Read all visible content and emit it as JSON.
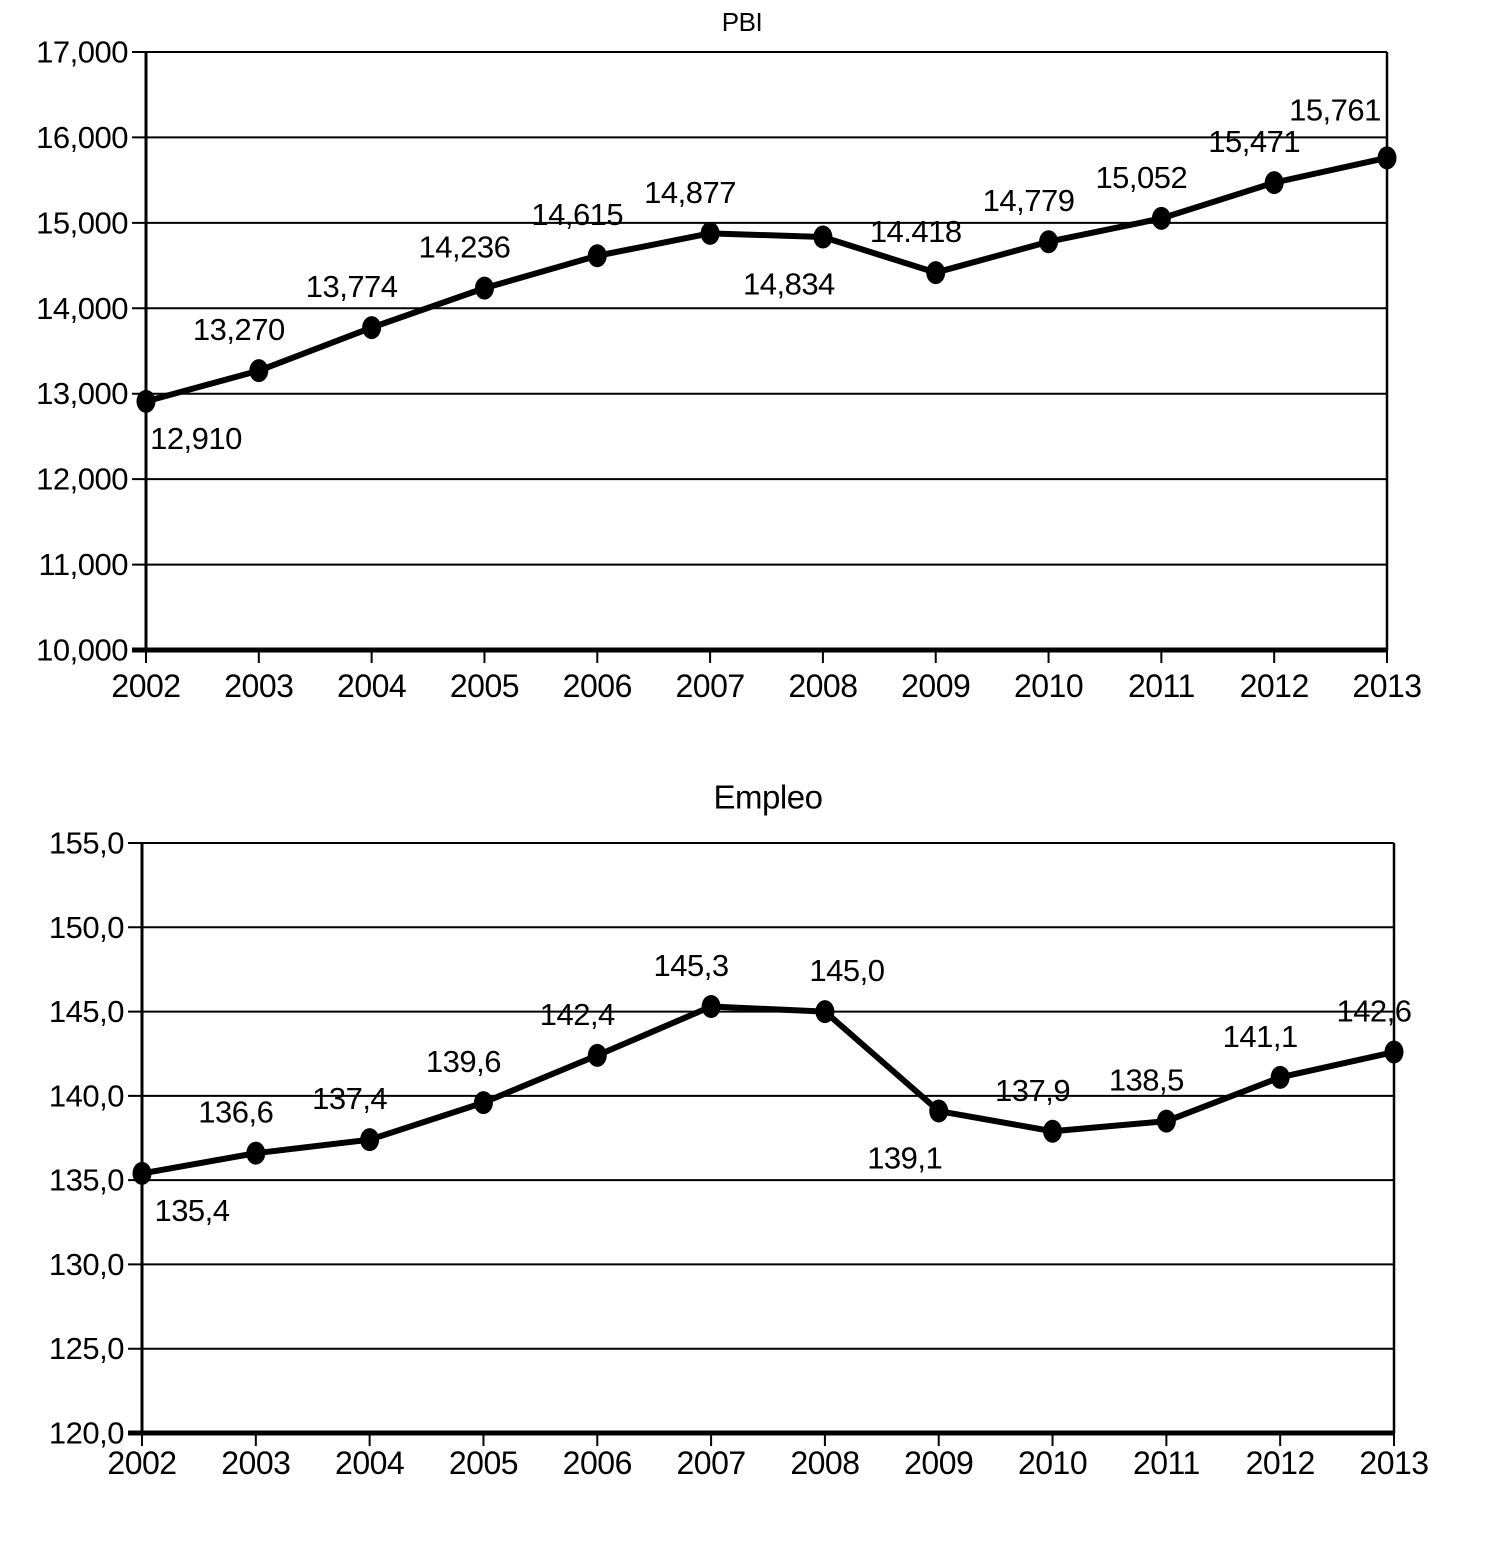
{
  "page": {
    "background": "#ffffff",
    "text_color": "#000000",
    "series_color": "#000000"
  },
  "chart_data": [
    {
      "type": "line",
      "title": "PBI",
      "categories": [
        "2002",
        "2003",
        "2004",
        "2005",
        "2006",
        "2007",
        "2008",
        "2009",
        "2010",
        "2011",
        "2012",
        "2013"
      ],
      "values": [
        12910,
        13270,
        13774,
        14236,
        14615,
        14877,
        14834,
        14418,
        14779,
        15052,
        15471,
        15761
      ],
      "point_labels": [
        "12,910",
        "13,270",
        "13,774",
        "14,236",
        "14,615",
        "14,877",
        "14,834",
        "14.418",
        "14,779",
        "15,052",
        "15,471",
        "15,761"
      ],
      "label_placement": [
        "below-right",
        "above",
        "above",
        "above",
        "above",
        "above",
        "below",
        "above",
        "above",
        "above",
        "above",
        "above-left"
      ],
      "xlabel": "",
      "ylabel": "",
      "ylim": [
        10000,
        17000
      ],
      "ytick_step": 1000,
      "ytick_labels": [
        "17,000",
        "16,000",
        "15,000",
        "14,000",
        "13,000",
        "12,000",
        "11,000",
        "10,000"
      ],
      "grid": true,
      "legend": "none",
      "marker": "filled-ellipse"
    },
    {
      "type": "line",
      "title": "Empleo",
      "categories": [
        "2002",
        "2003",
        "2004",
        "2005",
        "2006",
        "2007",
        "2008",
        "2009",
        "2010",
        "2011",
        "2012",
        "2013"
      ],
      "values": [
        135.4,
        136.6,
        137.4,
        139.6,
        142.4,
        145.3,
        145.0,
        139.1,
        137.9,
        138.5,
        141.1,
        142.6
      ],
      "point_labels": [
        "135,4",
        "136,6",
        "137,4",
        "139,6",
        "142,4",
        "145,3",
        "145,0",
        "139,1",
        "137,9",
        "138,5",
        "141,1",
        "142,6"
      ],
      "label_placement": [
        "below-right",
        "above",
        "above",
        "above",
        "above",
        "above",
        "above-right",
        "below",
        "above",
        "above",
        "above",
        "above"
      ],
      "xlabel": "",
      "ylabel": "",
      "ylim": [
        120,
        155
      ],
      "ytick_step": 5,
      "ytick_labels": [
        "155,0",
        "150,0",
        "145,0",
        "140,0",
        "135,0",
        "130,0",
        "125,0",
        "120,0"
      ],
      "grid": true,
      "legend": "none",
      "marker": "filled-ellipse"
    }
  ]
}
